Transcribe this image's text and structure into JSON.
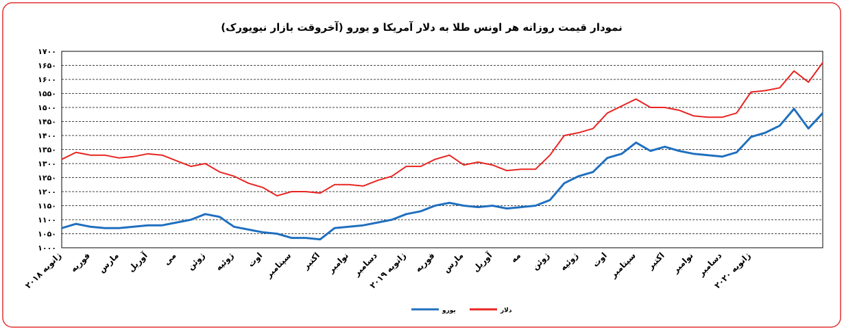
{
  "chart_data": {
    "type": "line",
    "title": "نمودار قیمت روزانه هر اونس طلا به دلار آمریکا و یورو (آخروقت بازار نیویورک)",
    "categories": [
      "ژانویه ۲۰۱۸",
      null,
      "فوریه",
      null,
      "مارس",
      null,
      "آوریل",
      null,
      "می",
      null,
      "ژوئن",
      null,
      "ژوئیه",
      null,
      "اوت",
      null,
      "سپتامبر",
      null,
      "اکتبر",
      null,
      "نوامبر",
      null,
      "دسامبر",
      null,
      "ژانویه ۲۰۱۹",
      null,
      "فوریه",
      null,
      "مارس",
      null,
      "آوریل",
      null,
      "مه",
      null,
      "ژوئن",
      null,
      "ژوئیه",
      null,
      "اوت",
      null,
      "سپتامبر",
      null,
      "اکتبر",
      null,
      "نوامبر",
      null,
      "دسامبر",
      null,
      "ژانویه ۲۰۲۰",
      null,
      null,
      null,
      null,
      null
    ],
    "series": [
      {
        "name": "یورو",
        "color": "#1f6fbf",
        "values": [
          1070,
          1085,
          1075,
          1070,
          1070,
          1075,
          1080,
          1080,
          1090,
          1100,
          1120,
          1110,
          1075,
          1065,
          1055,
          1050,
          1035,
          1035,
          1030,
          1070,
          1075,
          1080,
          1090,
          1100,
          1120,
          1130,
          1150,
          1160,
          1150,
          1145,
          1150,
          1140,
          1145,
          1150,
          1170,
          1230,
          1255,
          1270,
          1320,
          1335,
          1375,
          1345,
          1360,
          1345,
          1335,
          1330,
          1325,
          1340,
          1395,
          1410,
          1435,
          1495,
          1425,
          1480
        ]
      },
      {
        "name": "دلار",
        "color": "#e8231f",
        "values": [
          1315,
          1340,
          1330,
          1330,
          1320,
          1325,
          1335,
          1330,
          1310,
          1290,
          1300,
          1270,
          1255,
          1230,
          1215,
          1185,
          1200,
          1200,
          1195,
          1225,
          1225,
          1220,
          1240,
          1255,
          1290,
          1290,
          1315,
          1330,
          1295,
          1305,
          1295,
          1275,
          1280,
          1280,
          1330,
          1400,
          1410,
          1425,
          1480,
          1505,
          1530,
          1500,
          1500,
          1490,
          1470,
          1465,
          1465,
          1480,
          1555,
          1560,
          1570,
          1630,
          1590,
          1660
        ]
      }
    ],
    "ylim": [
      1000,
      1700
    ],
    "yticks": [
      {
        "value": 1000,
        "label": "۱۰۰۰"
      },
      {
        "value": 1050,
        "label": "۱۰۵۰"
      },
      {
        "value": 1100,
        "label": "۱۱۰۰"
      },
      {
        "value": 1150,
        "label": "۱۱۵۰"
      },
      {
        "value": 1200,
        "label": "۱۲۰۰"
      },
      {
        "value": 1250,
        "label": "۱۲۵۰"
      },
      {
        "value": 1300,
        "label": "۱۳۰۰"
      },
      {
        "value": 1350,
        "label": "۱۳۵۰"
      },
      {
        "value": 1400,
        "label": "۱۴۰۰"
      },
      {
        "value": 1450,
        "label": "۱۴۵۰"
      },
      {
        "value": 1500,
        "label": "۱۵۰۰"
      },
      {
        "value": 1550,
        "label": "۱۵۵۰"
      },
      {
        "value": 1600,
        "label": "۱۶۰۰"
      },
      {
        "value": 1650,
        "label": "۱۶۵۰"
      },
      {
        "value": 1700,
        "label": "۱۷۰۰"
      }
    ],
    "grid": true,
    "legend": "bottom"
  }
}
